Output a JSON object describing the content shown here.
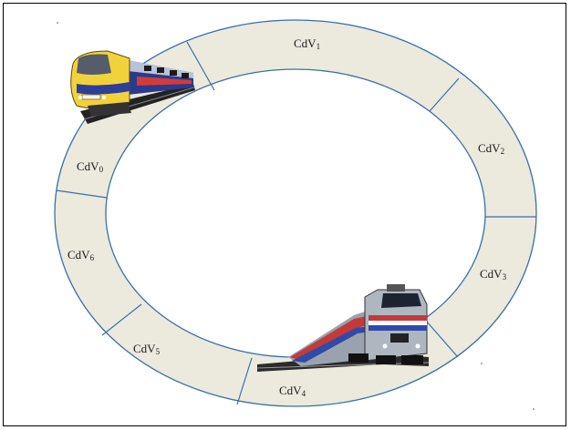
{
  "diagram": {
    "ring_color": "#ece9dd",
    "line_color": "#3a6fa8",
    "sections": [
      {
        "id": "cdv1",
        "prefix": "CdV",
        "index": "1"
      },
      {
        "id": "cdv2",
        "prefix": "CdV",
        "index": "2"
      },
      {
        "id": "cdv3",
        "prefix": "CdV",
        "index": "3"
      },
      {
        "id": "cdv4",
        "prefix": "CdV",
        "index": "4"
      },
      {
        "id": "cdv5",
        "prefix": "CdV",
        "index": "5"
      },
      {
        "id": "cdv6",
        "prefix": "CdV",
        "index": "6"
      },
      {
        "id": "cdv0",
        "prefix": "CdV",
        "index": "0"
      }
    ],
    "trains": [
      {
        "id": "train-high-speed",
        "icon": "high-speed-train-icon"
      },
      {
        "id": "train-locomotive",
        "icon": "locomotive-icon"
      }
    ]
  }
}
